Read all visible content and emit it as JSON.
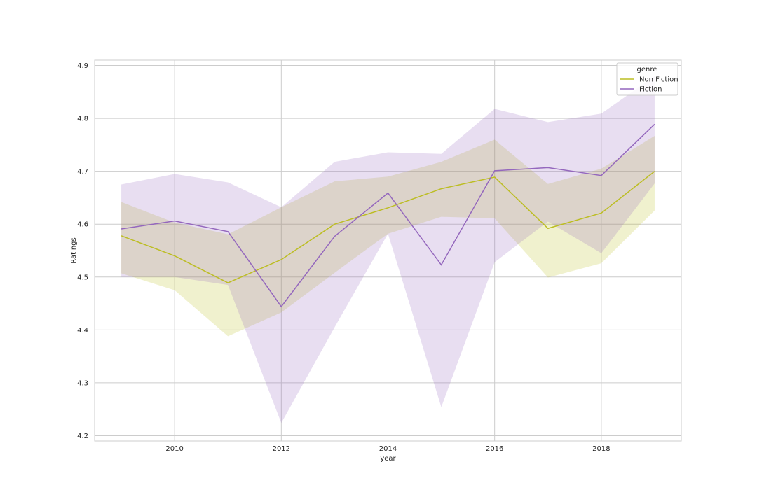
{
  "chart_data": {
    "type": "line",
    "title": "",
    "xlabel": "year",
    "ylabel": "Ratings",
    "xlim": [
      2008.5,
      2019.5
    ],
    "ylim": [
      4.19,
      4.91
    ],
    "x_ticks": [
      2010,
      2012,
      2014,
      2016,
      2018
    ],
    "y_ticks": [
      4.2,
      4.3,
      4.4,
      4.5,
      4.6,
      4.7,
      4.8,
      4.9
    ],
    "grid": true,
    "legend": {
      "title": "genre",
      "placement": "top-right"
    },
    "x": [
      2009,
      2010,
      2011,
      2012,
      2013,
      2014,
      2015,
      2016,
      2017,
      2018,
      2019
    ],
    "series": [
      {
        "name": "Non Fiction",
        "color": "#bcbd22",
        "values": [
          4.578,
          4.54,
          4.489,
          4.533,
          4.6,
          4.631,
          4.667,
          4.689,
          4.592,
          4.621,
          4.7
        ],
        "ci_low": [
          4.507,
          4.475,
          4.388,
          4.433,
          4.508,
          4.582,
          4.614,
          4.611,
          4.499,
          4.526,
          4.626
        ],
        "ci_high": [
          4.642,
          4.603,
          4.581,
          4.632,
          4.681,
          4.69,
          4.718,
          4.76,
          4.676,
          4.705,
          4.767
        ]
      },
      {
        "name": "Fiction",
        "color": "#9467bd",
        "values": [
          4.591,
          4.606,
          4.586,
          4.444,
          4.577,
          4.659,
          4.523,
          4.701,
          4.707,
          4.692,
          4.789
        ],
        "ci_low": [
          4.5,
          4.5,
          4.485,
          4.224,
          4.405,
          4.582,
          4.254,
          4.528,
          4.605,
          4.545,
          4.677
        ],
        "ci_high": [
          4.675,
          4.695,
          4.679,
          4.632,
          4.718,
          4.736,
          4.733,
          4.818,
          4.793,
          4.809,
          4.88
        ]
      }
    ]
  }
}
